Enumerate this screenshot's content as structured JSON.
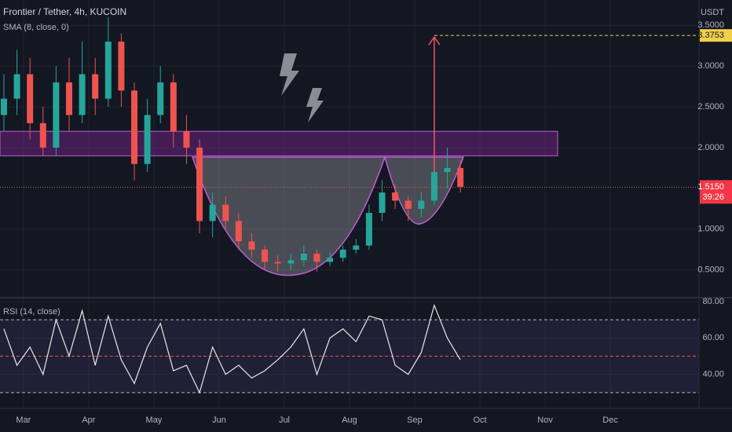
{
  "chart_data": [
    {
      "type": "candlestick",
      "title": "Frontier / Tether, 4h, KUCOIN",
      "indicator": "SMA (8, close, 0)",
      "axis_unit": "USDT",
      "x": [
        -0.3,
        -0.1,
        0.1,
        0.3,
        0.5,
        0.7,
        0.9,
        1.1,
        1.3,
        1.5,
        1.7,
        1.9,
        2.1,
        2.3,
        2.5,
        2.7,
        2.9,
        3.1,
        3.3,
        3.5,
        3.7,
        3.9,
        4.1,
        4.3,
        4.5,
        4.7,
        4.9,
        5.1,
        5.3,
        5.5,
        5.7,
        5.9,
        6.1,
        6.3,
        6.5,
        6.7
      ],
      "open": [
        2.4,
        2.6,
        2.9,
        2.3,
        2.0,
        2.8,
        2.4,
        2.9,
        2.6,
        3.3,
        2.7,
        1.8,
        2.4,
        2.8,
        2.2,
        2.0,
        1.1,
        1.3,
        1.1,
        0.85,
        0.75,
        0.6,
        0.58,
        0.62,
        0.7,
        0.6,
        0.65,
        0.75,
        0.8,
        1.2,
        1.45,
        1.35,
        1.25,
        1.35,
        1.7,
        1.75
      ],
      "high": [
        2.9,
        3.2,
        3.1,
        2.5,
        3.0,
        3.1,
        3.3,
        3.1,
        3.6,
        3.4,
        2.8,
        2.6,
        3.0,
        2.9,
        2.4,
        2.1,
        1.45,
        1.4,
        1.2,
        0.95,
        0.8,
        0.68,
        0.7,
        0.8,
        0.75,
        0.72,
        0.8,
        0.88,
        1.3,
        1.6,
        1.55,
        1.4,
        1.45,
        2.25,
        2.0,
        1.85
      ],
      "low": [
        2.2,
        2.4,
        2.1,
        1.9,
        1.9,
        2.2,
        2.3,
        2.4,
        2.5,
        2.5,
        1.6,
        1.7,
        2.3,
        2.0,
        1.8,
        0.95,
        0.9,
        1.0,
        0.75,
        0.65,
        0.5,
        0.48,
        0.5,
        0.55,
        0.48,
        0.55,
        0.6,
        0.7,
        0.75,
        1.1,
        1.25,
        1.1,
        1.15,
        1.3,
        1.5,
        1.45
      ],
      "close": [
        2.6,
        2.9,
        2.3,
        2.0,
        2.8,
        2.4,
        2.9,
        2.6,
        3.3,
        2.7,
        1.8,
        2.4,
        2.8,
        2.2,
        2.0,
        1.1,
        1.3,
        1.1,
        0.85,
        0.75,
        0.6,
        0.58,
        0.62,
        0.7,
        0.6,
        0.65,
        0.75,
        0.8,
        1.2,
        1.45,
        1.35,
        1.25,
        1.35,
        1.7,
        1.75,
        1.52
      ],
      "up_color": "#26a69a",
      "down_color": "#ef5350",
      "xlim": [
        -0.36,
        10.36
      ],
      "xticks": [
        {
          "value": 0,
          "label": "Mar"
        },
        {
          "value": 1,
          "label": "Apr"
        },
        {
          "value": 2,
          "label": "May"
        },
        {
          "value": 3,
          "label": "Jun"
        },
        {
          "value": 4,
          "label": "Jul"
        },
        {
          "value": 5,
          "label": "Aug"
        },
        {
          "value": 6,
          "label": "Sep"
        },
        {
          "value": 7,
          "label": "Oct"
        },
        {
          "value": 8,
          "label": "Nov"
        },
        {
          "value": 9,
          "label": "Dec"
        }
      ],
      "ylim": [
        0.17,
        3.81
      ],
      "yticks": [
        {
          "value": 0.5,
          "label": "0.5000"
        },
        {
          "value": 1,
          "label": "1.0000"
        },
        {
          "value": 2,
          "label": "2.0000"
        },
        {
          "value": 2.5,
          "label": "2.5000"
        },
        {
          "value": 3,
          "label": "3.0000"
        },
        {
          "value": 3.5,
          "label": "3.5000"
        }
      ],
      "zone": [
        1.9,
        2.2
      ],
      "target": {
        "value": 3.3753,
        "label": "3.3753"
      },
      "last": {
        "value": 1.515,
        "label": "1.5150"
      },
      "countdown": "39:26"
    },
    {
      "type": "line",
      "title": "RSI (14, close)",
      "values": [
        65,
        45,
        55,
        40,
        70,
        50,
        75,
        45,
        72,
        48,
        35,
        55,
        68,
        42,
        45,
        30,
        55,
        40,
        45,
        38,
        42,
        48,
        55,
        65,
        40,
        60,
        65,
        58,
        72,
        70,
        45,
        40,
        52,
        78,
        60,
        48
      ],
      "color": "#e8e8e8",
      "ylim": [
        21.3,
        81.7
      ],
      "yticks": [
        {
          "value": 40,
          "label": "40.00"
        },
        {
          "value": 60,
          "label": "60.00"
        },
        {
          "value": 80,
          "label": "80.00"
        }
      ],
      "band": [
        30,
        70
      ],
      "midline": 50
    }
  ]
}
